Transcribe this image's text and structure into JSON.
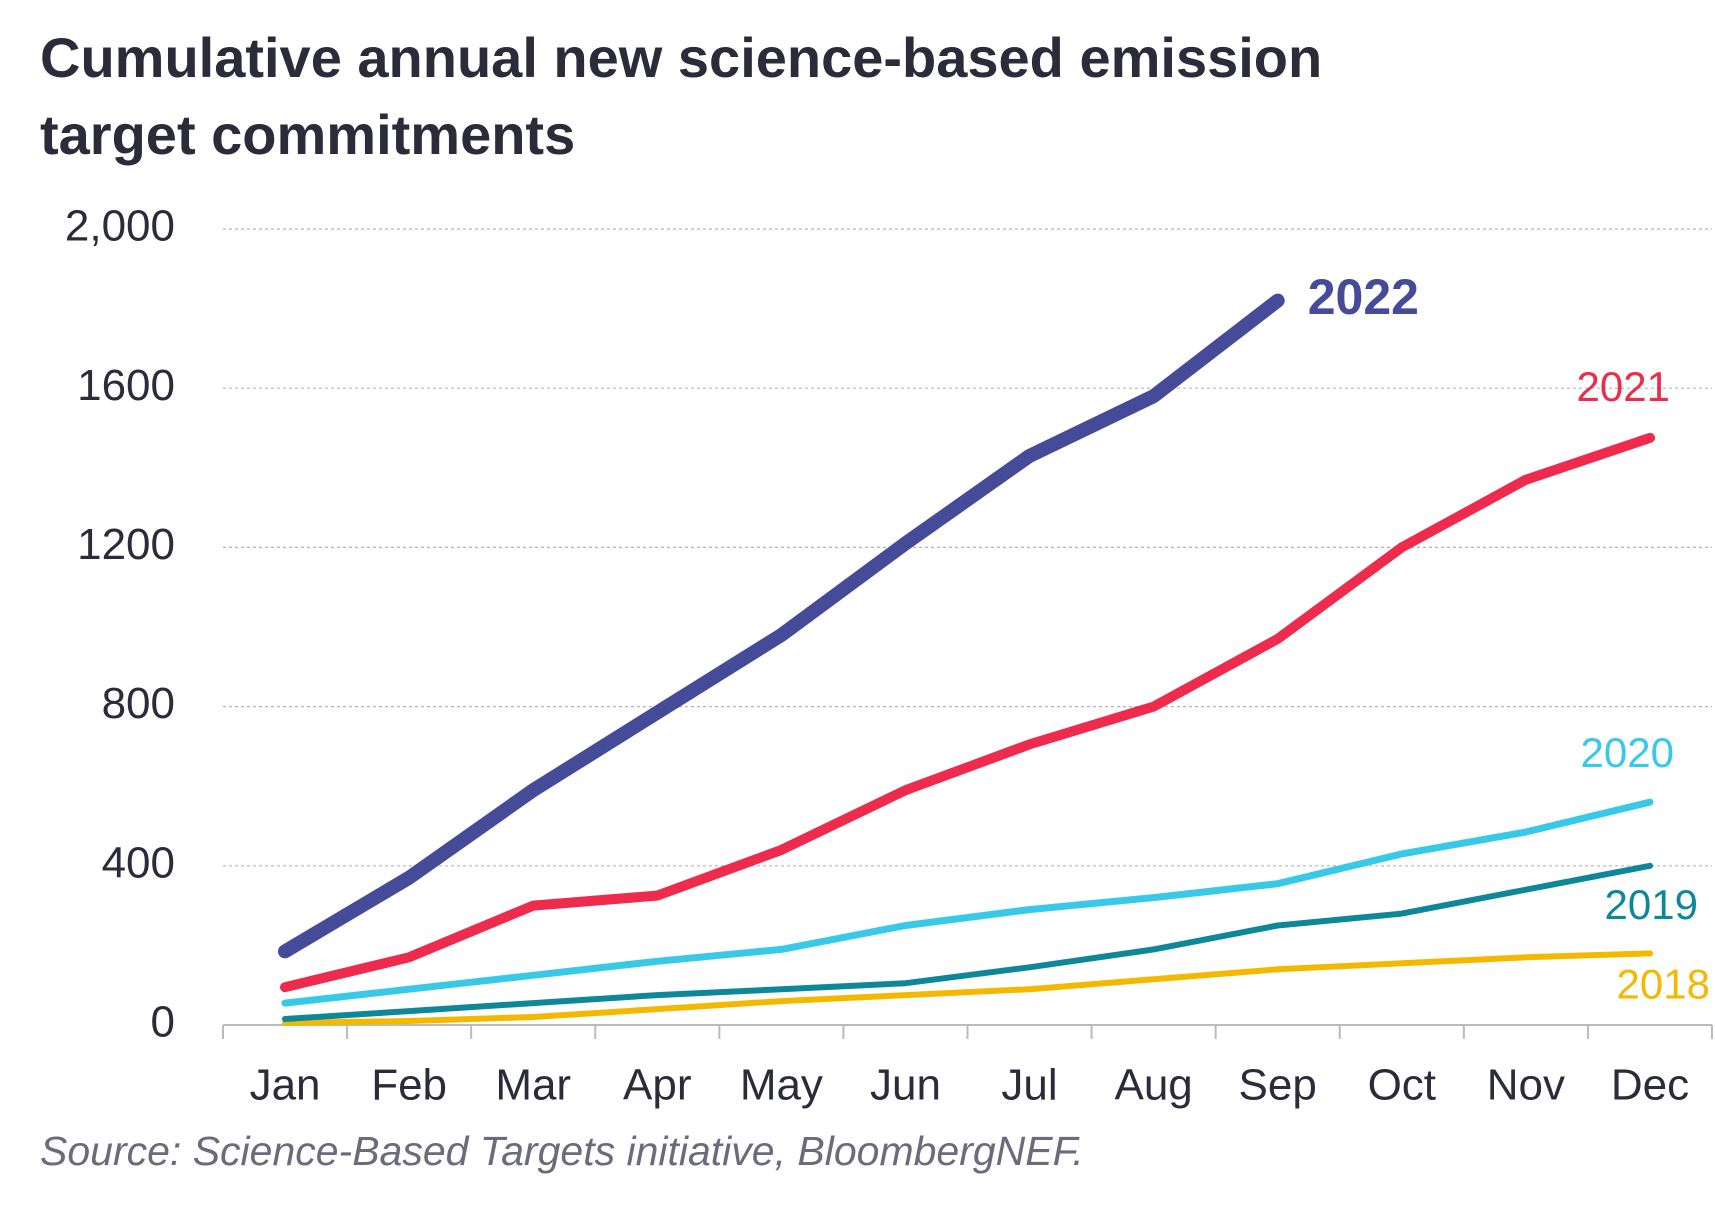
{
  "chart_data": {
    "type": "line",
    "title": [
      "Cumulative annual new science-based emission",
      "target commitments"
    ],
    "source": "Source: Science-Based Targets initiative, BloombergNEF.",
    "categories": [
      "Jan",
      "Feb",
      "Mar",
      "Apr",
      "May",
      "Jun",
      "Jul",
      "Aug",
      "Sep",
      "Oct",
      "Nov",
      "Dec"
    ],
    "series": [
      {
        "name": "2022",
        "color": "#454a99",
        "values": [
          185,
          370,
          590,
          785,
          980,
          1210,
          1430,
          1580,
          1820,
          null,
          null,
          null
        ]
      },
      {
        "name": "2021",
        "color": "#ee2a4d",
        "values": [
          95,
          170,
          300,
          325,
          440,
          590,
          705,
          800,
          970,
          1200,
          1370,
          1475
        ]
      },
      {
        "name": "2020",
        "color": "#38c9e8",
        "values": [
          55,
          90,
          125,
          160,
          190,
          250,
          290,
          320,
          355,
          430,
          485,
          560
        ]
      },
      {
        "name": "2019",
        "color": "#0e8799",
        "values": [
          15,
          35,
          55,
          75,
          90,
          105,
          145,
          190,
          250,
          280,
          340,
          400
        ]
      },
      {
        "name": "2018",
        "color": "#f5b800",
        "values": [
          5,
          10,
          20,
          40,
          60,
          75,
          90,
          115,
          140,
          155,
          170,
          180
        ]
      }
    ],
    "ylim": [
      0,
      2000
    ],
    "yticks": [
      0,
      400,
      800,
      1200,
      1600,
      {
        "value": 2000,
        "label": "2,000"
      }
    ],
    "grid": true
  }
}
